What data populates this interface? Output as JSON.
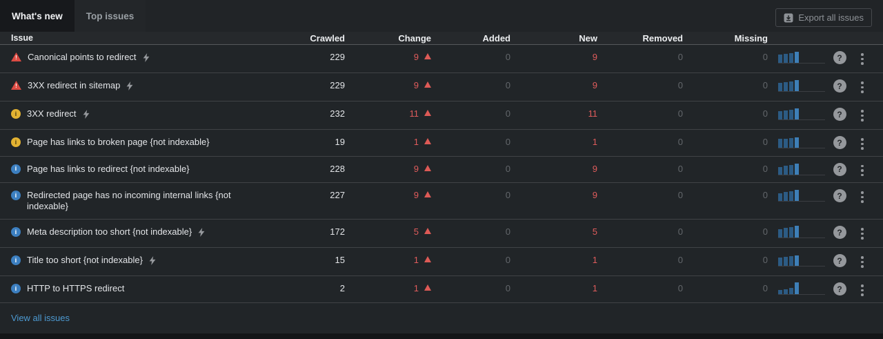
{
  "tabs": [
    {
      "label": "What's new",
      "active": true
    },
    {
      "label": "Top issues",
      "active": false
    }
  ],
  "export_button": {
    "label": "Export all issues",
    "icon": "download-icon"
  },
  "table": {
    "columns": {
      "issue": "Issue",
      "crawled": "Crawled",
      "change": "Change",
      "added": "Added",
      "new": "New",
      "removed": "Removed",
      "missing": "Missing"
    },
    "rows": [
      {
        "severity": "error",
        "label": "Canonical points to redirect",
        "lightning": true,
        "crawled": "229",
        "change": "9",
        "change_direction": "up",
        "added": "0",
        "new": "9",
        "removed": "0",
        "missing": "0",
        "spark": [
          12,
          13,
          14,
          16
        ]
      },
      {
        "severity": "error",
        "label": "3XX redirect in sitemap",
        "lightning": true,
        "crawled": "229",
        "change": "9",
        "change_direction": "up",
        "added": "0",
        "new": "9",
        "removed": "0",
        "missing": "0",
        "spark": [
          12,
          13,
          14,
          16
        ]
      },
      {
        "severity": "warning",
        "label": "3XX redirect",
        "lightning": true,
        "crawled": "232",
        "change": "11",
        "change_direction": "up",
        "added": "0",
        "new": "11",
        "removed": "0",
        "missing": "0",
        "spark": [
          12,
          13,
          14,
          16
        ]
      },
      {
        "severity": "warning",
        "label": "Page has links to broken page {not indexable}",
        "lightning": false,
        "crawled": "19",
        "change": "1",
        "change_direction": "up",
        "added": "0",
        "new": "1",
        "removed": "0",
        "missing": "0",
        "spark": [
          13,
          13,
          14,
          15
        ]
      },
      {
        "severity": "notice",
        "label": "Page has links to redirect {not indexable}",
        "lightning": false,
        "crawled": "228",
        "change": "9",
        "change_direction": "up",
        "added": "0",
        "new": "9",
        "removed": "0",
        "missing": "0",
        "spark": [
          11,
          13,
          14,
          16
        ]
      },
      {
        "severity": "notice",
        "label": "Redirected page has no incoming internal links {not indexable}",
        "lightning": false,
        "crawled": "227",
        "change": "9",
        "change_direction": "up",
        "added": "0",
        "new": "9",
        "removed": "0",
        "missing": "0",
        "spark": [
          11,
          13,
          14,
          16
        ]
      },
      {
        "severity": "notice",
        "label": "Meta description too short {not indexable}",
        "lightning": true,
        "crawled": "172",
        "change": "5",
        "change_direction": "up",
        "added": "0",
        "new": "5",
        "removed": "0",
        "missing": "0",
        "spark": [
          12,
          14,
          15,
          17
        ]
      },
      {
        "severity": "notice",
        "label": "Title too short {not indexable}",
        "lightning": true,
        "crawled": "15",
        "change": "1",
        "change_direction": "up",
        "added": "0",
        "new": "1",
        "removed": "0",
        "missing": "0",
        "spark": [
          12,
          13,
          14,
          15
        ]
      },
      {
        "severity": "notice",
        "label": "HTTP to HTTPS redirect",
        "lightning": false,
        "crawled": "2",
        "change": "1",
        "change_direction": "up",
        "added": "0",
        "new": "1",
        "removed": "0",
        "missing": "0",
        "spark": [
          6,
          7,
          9,
          17
        ]
      }
    ],
    "icons": {
      "severity_error": "error-triangle-icon",
      "severity_warning": "warning-circle-icon",
      "severity_notice": "info-circle-icon",
      "lightning": "lightning-icon",
      "change_up": "triangle-up-icon",
      "help": "question-mark-icon",
      "row_menu": "kebab-menu-icon"
    },
    "colors": {
      "negative_red": "#e05c5c",
      "error_icon": "#dd4c44",
      "warning_icon": "#e3b232",
      "notice_icon": "#3c7fc0",
      "spark_bar": "#2c5b84",
      "spark_bar_latest": "#3e7fb7",
      "link_blue": "#4d9ad2",
      "dim_zero": "#63676b"
    }
  },
  "footer": {
    "view_all_label": "View all issues"
  }
}
